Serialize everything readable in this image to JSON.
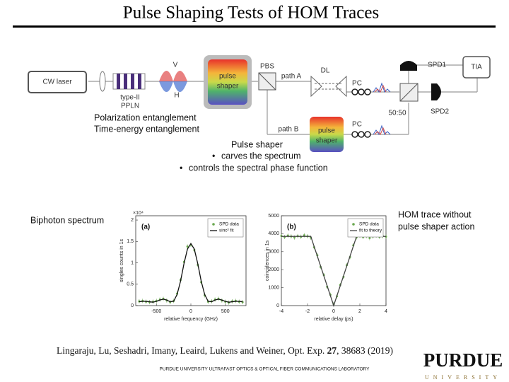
{
  "title": "Pulse Shaping Tests of HOM Traces",
  "diagram": {
    "laser": "CW laser",
    "crystal": [
      "type-II",
      "PPLN"
    ],
    "polarizations": [
      "V",
      "H"
    ],
    "shaper_a": [
      "pulse",
      "shaper"
    ],
    "pbs": "PBS",
    "path_a": "path A",
    "delay_line": "DL",
    "pc_a": "PC",
    "spd1": "SPD1",
    "tia": "TIA",
    "splitter": "50:50",
    "spd2": "SPD2",
    "path_b": "path B",
    "pc_b": "PC",
    "shaper_b": [
      "pulse",
      "shaper"
    ]
  },
  "notes": {
    "entanglement": [
      "Polarization entanglement",
      "Time-energy entanglement"
    ],
    "shaper_heading": "Pulse shaper",
    "shaper_bullets": [
      "carves the spectrum",
      "controls the spectral phase function"
    ],
    "biphoton": "Biphoton spectrum",
    "hom": [
      "HOM trace without",
      "pulse shaper action"
    ]
  },
  "chart_data": [
    {
      "type": "scatter",
      "panel": "(a)",
      "x_label": "relative frequency (GHz)",
      "y_label": "singles counts in 1s",
      "y_multiplier": "×10⁴",
      "xlim": [
        -800,
        800
      ],
      "ylim": [
        0,
        2.1
      ],
      "xticks": [
        -500,
        0,
        500
      ],
      "yticks": [
        0,
        0.5,
        1,
        1.5,
        2
      ],
      "legend": "upper right",
      "series": [
        {
          "name": "SPD data",
          "color": "#6aa84f",
          "mark": "points",
          "x": [
            -750,
            -700,
            -650,
            -600,
            -550,
            -500,
            -450,
            -400,
            -350,
            -300,
            -250,
            -200,
            -150,
            -100,
            -50,
            0,
            50,
            100,
            150,
            200,
            250,
            300,
            350,
            400,
            450,
            500,
            550,
            600,
            650,
            700,
            750
          ],
          "values": [
            0.1,
            0.11,
            0.09,
            0.08,
            0.09,
            0.11,
            0.14,
            0.16,
            0.12,
            0.08,
            0.11,
            0.28,
            0.6,
            1.02,
            1.38,
            1.42,
            1.3,
            0.95,
            0.55,
            0.24,
            0.09,
            0.1,
            0.14,
            0.16,
            0.12,
            0.09,
            0.07,
            0.1,
            0.11,
            0.09,
            0.08
          ]
        },
        {
          "name": "sinc² fit",
          "color": "#111111",
          "mark": "line",
          "x": [
            -750,
            -700,
            -650,
            -600,
            -550,
            -500,
            -450,
            -400,
            -350,
            -300,
            -250,
            -200,
            -150,
            -100,
            -50,
            0,
            50,
            100,
            150,
            200,
            250,
            300,
            350,
            400,
            450,
            500,
            550,
            600,
            650,
            700,
            750
          ],
          "values": [
            0.09,
            0.1,
            0.1,
            0.09,
            0.08,
            0.1,
            0.13,
            0.15,
            0.13,
            0.09,
            0.1,
            0.26,
            0.57,
            0.98,
            1.32,
            1.45,
            1.32,
            0.98,
            0.57,
            0.26,
            0.1,
            0.09,
            0.13,
            0.15,
            0.13,
            0.1,
            0.08,
            0.09,
            0.1,
            0.1,
            0.09
          ]
        }
      ]
    },
    {
      "type": "scatter",
      "panel": "(b)",
      "x_label": "relative delay (ps)",
      "y_label": "coincidences in 1s",
      "xlim": [
        -4,
        4
      ],
      "ylim": [
        0,
        5000
      ],
      "xticks": [
        -4,
        -2,
        0,
        2,
        4
      ],
      "yticks": [
        0,
        1000,
        2000,
        3000,
        4000,
        5000
      ],
      "legend": "upper right",
      "series": [
        {
          "name": "SPD data",
          "color": "#6aa84f",
          "mark": "points",
          "x": [
            -4,
            -3.75,
            -3.5,
            -3.25,
            -3,
            -2.75,
            -2.5,
            -2.25,
            -2,
            -1.75,
            -1.5,
            -1.25,
            -1,
            -0.75,
            -0.5,
            -0.25,
            0,
            0.25,
            0.5,
            0.75,
            1,
            1.25,
            1.5,
            1.75,
            2,
            2.25,
            2.5,
            2.75,
            3,
            3.25,
            3.5,
            3.75,
            4
          ],
          "values": [
            3880,
            3820,
            3900,
            3850,
            3790,
            3870,
            3830,
            3910,
            3860,
            3780,
            3250,
            2800,
            2150,
            1700,
            1050,
            600,
            80,
            520,
            1150,
            1600,
            2250,
            2700,
            3350,
            3800,
            3890,
            3820,
            3870,
            3760,
            3850,
            3900,
            3830,
            3870,
            3840
          ]
        },
        {
          "name": "fit to theory",
          "color": "#444444",
          "mark": "line",
          "x": [
            -4,
            -1.75,
            0,
            1.75,
            4
          ],
          "values": [
            3850,
            3850,
            0,
            3850,
            3850
          ]
        }
      ]
    }
  ],
  "citation": {
    "text": "Lingaraju, Lu, Seshadri, Imany, Leaird, Lukens and Weiner, Opt. Exp.",
    "volume": "27",
    "rest": ", 38683 (2019)"
  },
  "footer": "PURDUE UNIVERSITY ULTRAFAST OPTICS & OPTICAL FIBER COMMUNICATIONS LABORATORY",
  "logo": {
    "name": "PURDUE",
    "subtitle": "UNIVERSITY"
  }
}
